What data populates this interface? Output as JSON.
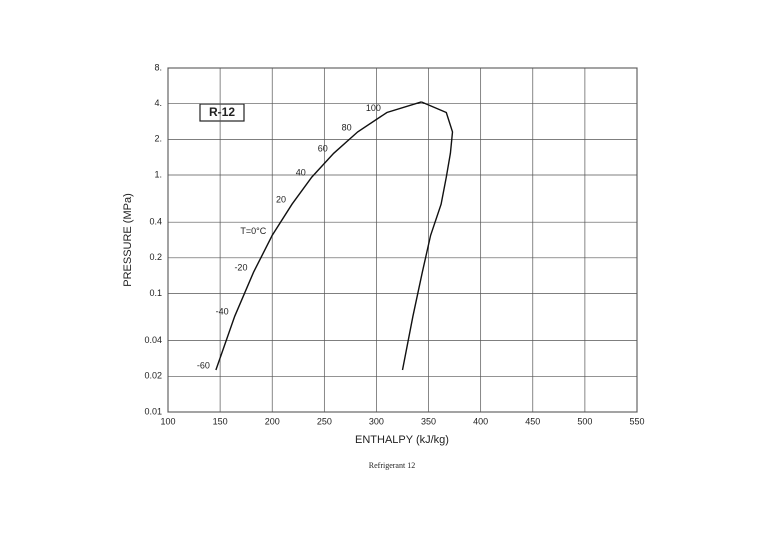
{
  "chart_data": {
    "type": "line",
    "title": "R-12",
    "x_label": "ENTHALPY (kJ/kg)",
    "y_label": "PRESSURE (MPa)",
    "caption": "Refrigerant 12",
    "log_y": true,
    "grid": true,
    "xlim": [
      100,
      550
    ],
    "xticks": [
      100,
      150,
      200,
      250,
      300,
      350,
      400,
      450,
      500,
      550
    ],
    "ylim": [
      0.01,
      8
    ],
    "yticks": [
      0.01,
      0.02,
      0.04,
      0.1,
      0.2,
      0.4,
      {
        "value": 1,
        "label": "1."
      },
      {
        "value": 2,
        "label": "2."
      },
      {
        "value": 4,
        "label": "4."
      },
      {
        "value": 8,
        "label": "8."
      }
    ],
    "temperature_labels": [
      "-60",
      "-40",
      "-20",
      "T=0°C",
      "20",
      "40",
      "60",
      "80",
      "100"
    ],
    "series": [
      {
        "color": "#111111",
        "x": [
          146,
          164,
          182,
          200,
          219,
          238,
          259,
          282,
          310,
          343
        ],
        "values": [
          0.0226,
          0.0642,
          0.151,
          0.309,
          0.567,
          0.961,
          1.525,
          2.31,
          3.37,
          4.14
        ]
      },
      {
        "color": "#111111",
        "x": [
          343,
          367,
          373,
          371,
          367,
          362,
          352,
          344,
          335,
          325
        ],
        "values": [
          4.14,
          3.37,
          2.31,
          1.525,
          0.961,
          0.567,
          0.309,
          0.151,
          0.0642,
          0.0226
        ]
      }
    ]
  }
}
